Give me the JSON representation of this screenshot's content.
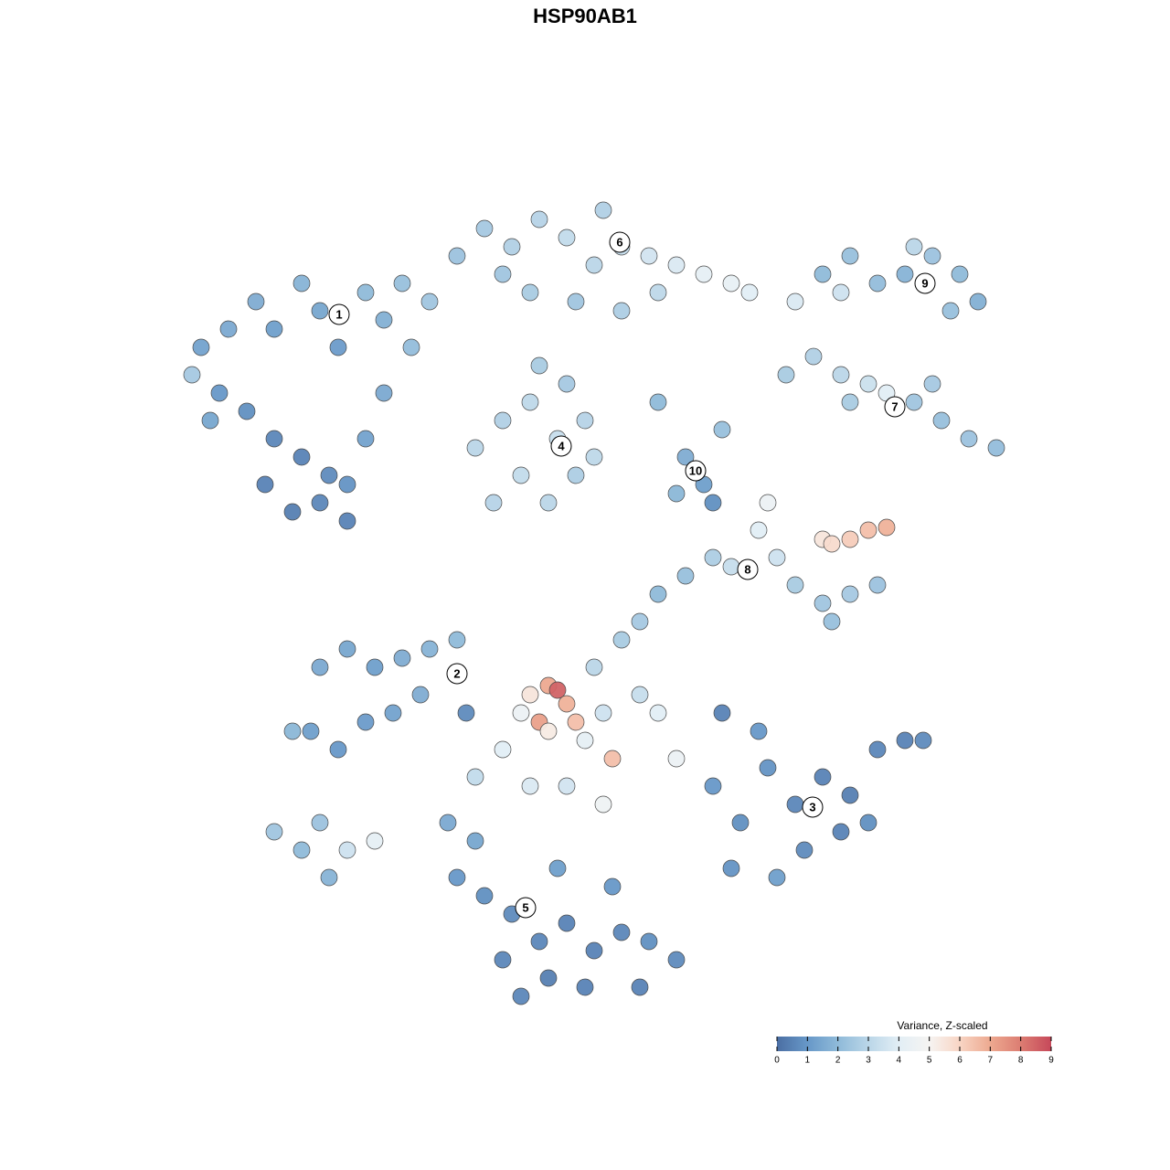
{
  "chart_data": {
    "type": "scatter",
    "title": "HSP90AB1",
    "xlim": [
      0,
      128
    ],
    "ylim": [
      0,
      128
    ],
    "x": [
      22,
      25,
      28,
      30,
      33,
      35,
      37,
      40,
      42,
      24,
      27,
      30,
      33,
      36,
      32,
      35,
      38,
      40,
      42,
      45,
      21,
      23,
      44,
      47,
      29,
      38,
      50,
      53,
      56,
      59,
      62,
      65,
      68,
      71,
      74,
      77,
      80,
      82,
      58,
      63,
      68,
      72,
      55,
      66,
      52,
      55,
      58,
      61,
      64,
      57,
      60,
      63,
      54,
      65,
      59,
      62,
      75,
      77,
      78,
      74,
      79,
      72,
      90,
      93,
      96,
      99,
      102,
      105,
      107,
      104,
      92,
      87,
      100,
      86,
      89,
      92,
      95,
      97,
      100,
      103,
      106,
      109,
      93,
      102,
      83,
      84,
      85,
      87,
      90,
      93,
      96,
      91,
      80,
      78,
      75,
      72,
      90,
      93,
      95,
      97,
      91,
      58,
      60,
      61,
      62,
      59,
      63,
      57,
      60,
      64,
      67,
      66,
      70,
      72,
      74,
      65,
      68,
      70,
      55,
      58,
      62,
      66,
      52,
      35,
      38,
      41,
      44,
      47,
      50,
      34,
      37,
      40,
      43,
      51,
      46,
      32,
      30,
      33,
      36,
      38,
      41,
      35,
      78,
      81,
      84,
      87,
      90,
      93,
      96,
      99,
      101,
      92,
      88,
      80,
      85,
      83,
      79,
      95,
      50,
      53,
      56,
      59,
      62,
      65,
      68,
      71,
      74,
      60,
      64,
      55,
      52,
      49,
      61,
      67,
      57,
      70
    ],
    "y": [
      90,
      92,
      95,
      92,
      97,
      94,
      90,
      96,
      93,
      85,
      83,
      80,
      78,
      76,
      72,
      73,
      75,
      80,
      85,
      90,
      87,
      82,
      97,
      95,
      75,
      71,
      100,
      103,
      101,
      104,
      102,
      99,
      101,
      100,
      99,
      98,
      97,
      96,
      96,
      95,
      94,
      96,
      98,
      105,
      79,
      82,
      84,
      80,
      82,
      76,
      73,
      76,
      73,
      78,
      88,
      86,
      78,
      75,
      73,
      74,
      81,
      84,
      98,
      100,
      97,
      98,
      100,
      98,
      95,
      94,
      96,
      95,
      101,
      87,
      89,
      87,
      86,
      85,
      84,
      82,
      80,
      79,
      84,
      86,
      70,
      73,
      67,
      64,
      62,
      63,
      64,
      60,
      66,
      67,
      65,
      63,
      69,
      69,
      70,
      70.3,
      68.5,
      52,
      53,
      52.5,
      51,
      49,
      49,
      50,
      48,
      47,
      45,
      50,
      52,
      50,
      45,
      55,
      58,
      60,
      46,
      42,
      42,
      40,
      43,
      55,
      57,
      55,
      56,
      57,
      58,
      48,
      46,
      49,
      50,
      50,
      52,
      48,
      37,
      35,
      32,
      35,
      36,
      38,
      42,
      38,
      44,
      40,
      43,
      41,
      46,
      47,
      47,
      37,
      35,
      33,
      32,
      48,
      50,
      38,
      32,
      30,
      28,
      25,
      27,
      24,
      26,
      25,
      23,
      21,
      20,
      23,
      36,
      38,
      33,
      31,
      19,
      20
    ],
    "values": [
      1.3,
      1.5,
      1.6,
      1.2,
      1.8,
      1.4,
      1.1,
      2.0,
      1.7,
      1.0,
      0.8,
      0.6,
      0.5,
      0.7,
      0.4,
      0.6,
      0.9,
      1.3,
      1.5,
      2.1,
      2.5,
      1.4,
      2.2,
      2.4,
      0.5,
      0.5,
      2.3,
      2.5,
      2.8,
      2.9,
      3.2,
      3.0,
      3.3,
      3.6,
      3.8,
      4.2,
      4.3,
      4.0,
      2.6,
      2.4,
      2.7,
      3.1,
      2.4,
      2.8,
      3.0,
      2.8,
      3.1,
      3.3,
      2.9,
      3.2,
      3.0,
      2.7,
      2.9,
      3.1,
      2.6,
      2.5,
      1.6,
      1.2,
      0.8,
      1.9,
      2.2,
      2.0,
      2.0,
      2.2,
      2.1,
      1.8,
      2.3,
      2.0,
      1.7,
      2.2,
      3.5,
      3.8,
      3.0,
      2.6,
      2.8,
      3.0,
      3.4,
      4.0,
      2.4,
      2.2,
      2.3,
      2.1,
      2.6,
      2.5,
      4.0,
      4.5,
      3.5,
      2.6,
      2.4,
      2.5,
      2.3,
      2.2,
      3.3,
      2.7,
      2.2,
      2.0,
      5.5,
      6.2,
      6.5,
      6.8,
      5.8,
      5.5,
      7.0,
      8.5,
      6.8,
      7.2,
      6.5,
      4.5,
      5.3,
      4.2,
      6.5,
      3.5,
      3.3,
      4.0,
      4.5,
      3.0,
      2.6,
      2.5,
      4.0,
      3.8,
      3.6,
      4.6,
      3.2,
      1.5,
      1.4,
      1.2,
      1.6,
      1.8,
      2.0,
      1.2,
      1.0,
      1.1,
      1.3,
      0.7,
      1.6,
      1.9,
      2.4,
      2.0,
      1.8,
      3.5,
      4.2,
      2.3,
      1.0,
      0.8,
      0.9,
      0.6,
      0.5,
      0.4,
      0.6,
      0.5,
      0.7,
      0.5,
      0.7,
      0.9,
      1.2,
      1.0,
      0.5,
      0.8,
      1.0,
      0.8,
      0.7,
      0.6,
      0.5,
      0.5,
      0.6,
      0.8,
      0.7,
      0.4,
      0.5,
      0.6,
      1.4,
      1.5,
      1.2,
      1.0,
      0.6,
      0.5
    ],
    "annotations": [
      {
        "text": "1",
        "x": 37.1,
        "y": 93.6
      },
      {
        "text": "2",
        "x": 50.0,
        "y": 54.3
      },
      {
        "text": "3",
        "x": 88.9,
        "y": 39.7
      },
      {
        "text": "4",
        "x": 61.4,
        "y": 79.2
      },
      {
        "text": "5",
        "x": 57.5,
        "y": 28.7
      },
      {
        "text": "6",
        "x": 67.8,
        "y": 101.5
      },
      {
        "text": "7",
        "x": 97.9,
        "y": 83.5
      },
      {
        "text": "8",
        "x": 81.8,
        "y": 65.7
      },
      {
        "text": "9",
        "x": 101.2,
        "y": 97.0
      },
      {
        "text": "10",
        "x": 76.1,
        "y": 76.5
      }
    ],
    "colorbar": {
      "title": "Variance, Z-scaled",
      "lim": [
        0,
        9
      ],
      "ticks": [
        0,
        1,
        2,
        3,
        4,
        5,
        6,
        7,
        8,
        9
      ],
      "colors": [
        "#4b6ea3",
        "#6798c8",
        "#8fbad9",
        "#bad6e8",
        "#e2eef5",
        "#f6f4f2",
        "#f8d5c4",
        "#eda990",
        "#dc7d72",
        "#c6485a"
      ]
    }
  }
}
